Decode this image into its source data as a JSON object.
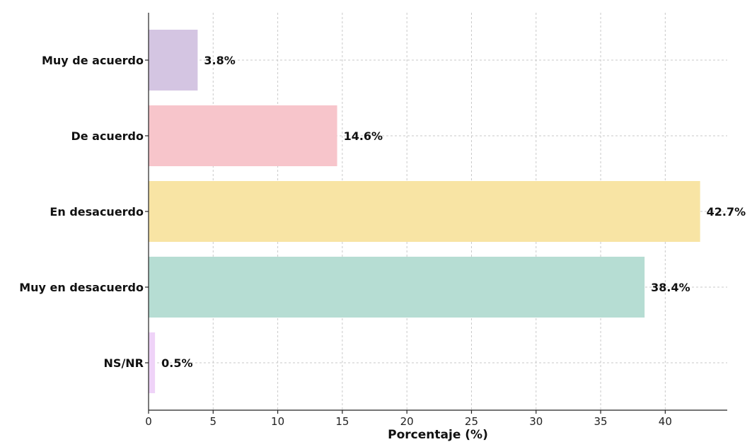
{
  "chart_data": {
    "type": "bar",
    "orientation": "horizontal",
    "title": "",
    "xlabel": "Porcentaje (%)",
    "ylabel": "",
    "xlim": [
      0,
      44.8
    ],
    "xticks": [
      0,
      5,
      10,
      15,
      20,
      25,
      30,
      35,
      40
    ],
    "grid": true,
    "categories": [
      "Muy de acuerdo",
      "De acuerdo",
      "En desacuerdo",
      "Muy en desacuerdo",
      "NS/NR"
    ],
    "values": [
      3.8,
      14.6,
      42.7,
      38.4,
      0.5
    ],
    "value_labels": [
      "3.8%",
      "14.6%",
      "42.7%",
      "38.4%",
      "0.5%"
    ],
    "colors": [
      "#d4c5e2",
      "#f7c5cb",
      "#f8e4a4",
      "#b6ddd3",
      "#efd3f8"
    ]
  }
}
